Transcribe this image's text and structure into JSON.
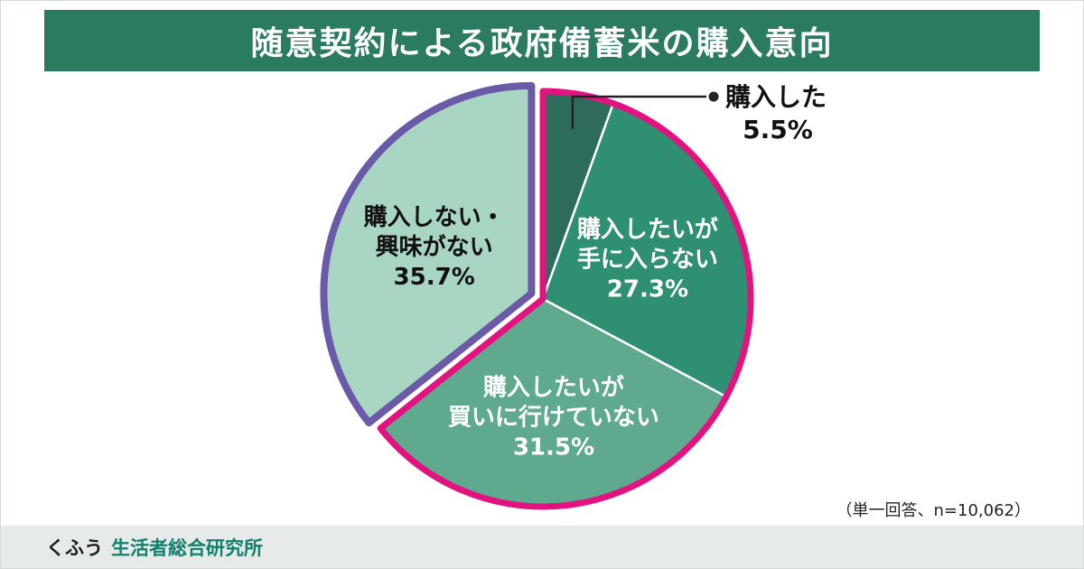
{
  "title": "随意契約による政府備蓄米の購入意向",
  "note": "（単一回答、n=10,062）",
  "footer": {
    "brand": "くふう",
    "org": "生活者総合研究所"
  },
  "colors": {
    "title_bar": "#2b7b60",
    "group_outline": "#e31280",
    "explode_outline": "#6a5aa8",
    "leader_line": "#222222",
    "footer_bg": "#e6eae8",
    "brand_org": "#12806a"
  },
  "chart_data": {
    "type": "pie",
    "title": "随意契約による政府備蓄米の購入意向",
    "unit": "%",
    "direction": "clockwise",
    "start_angle_deg": 0,
    "note": "（単一回答、n=10,062）",
    "segments": [
      {
        "label": "購入した",
        "value": 5.5,
        "color": "#2d6b5a",
        "text_color": "#111111",
        "label_lines": [
          "購入した",
          "5.5%"
        ],
        "label_style": "callout",
        "explode": false
      },
      {
        "label": "購入したいが手に入らない",
        "value": 27.3,
        "color": "#2f8f73",
        "text_color": "#ffffff",
        "label_lines": [
          "購入したいが",
          "手に入らない",
          "27.3%"
        ],
        "label_style": "inside",
        "explode": false
      },
      {
        "label": "購入したいが買いに行けていない",
        "value": 31.5,
        "color": "#5fa98f",
        "text_color": "#ffffff",
        "label_lines": [
          "購入したいが",
          "買いに行けていない",
          "31.5%"
        ],
        "label_style": "inside",
        "explode": false
      },
      {
        "label": "購入しない・興味がない",
        "value": 35.7,
        "color": "#a9d5c3",
        "text_color": "#111111",
        "label_lines": [
          "購入しない・",
          "興味がない",
          "35.7%"
        ],
        "label_style": "inside",
        "explode": true,
        "outline": "#6a5aa8"
      }
    ]
  }
}
